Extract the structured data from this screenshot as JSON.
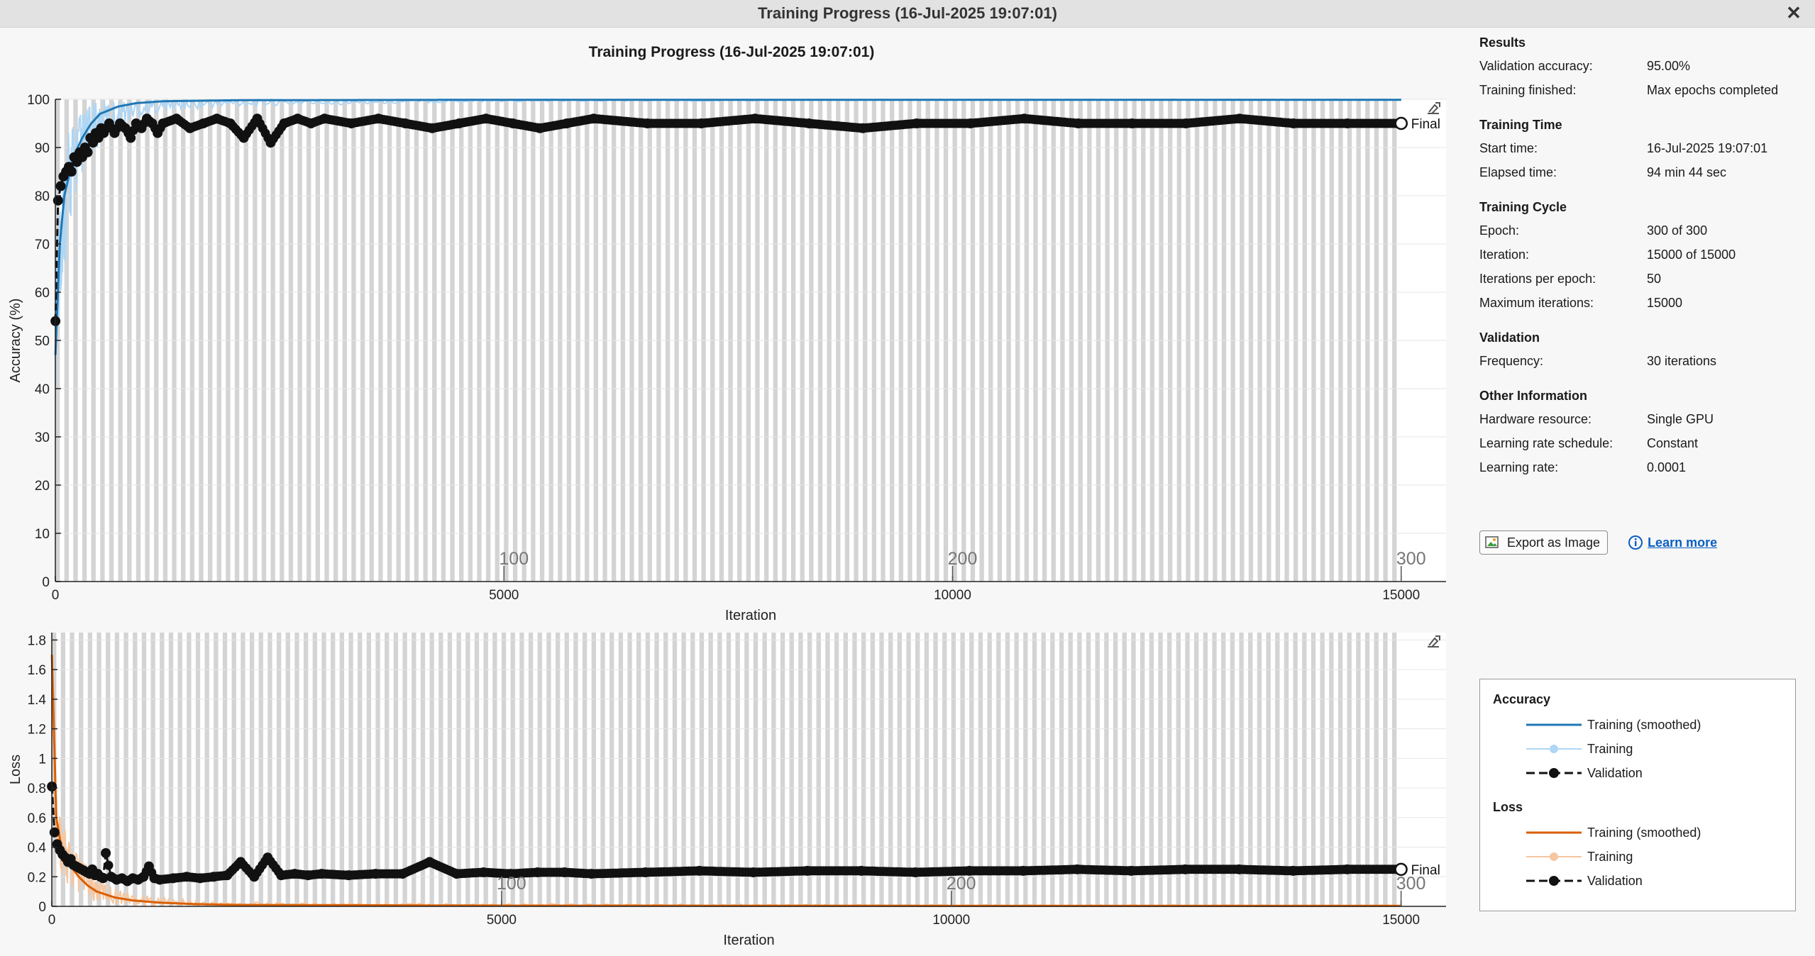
{
  "window": {
    "title": "Training Progress (16-Jul-2025 19:07:01)"
  },
  "colors": {
    "acc_smoothed": "#1f77b4",
    "acc_training": "#aed6f5",
    "loss_smoothed": "#d95f02",
    "loss_training": "#f6c6a0",
    "validation": "#111111",
    "epoch_stripe": "#d4d4d4"
  },
  "icons": {
    "close": "close-icon",
    "export": "export-image-icon",
    "info": "info-icon",
    "axes_toolbar": "axes-toolbar-icon"
  },
  "info_panel": {
    "sections": [
      {
        "title": "Results",
        "rows": [
          {
            "label": "Validation accuracy:",
            "value": "95.00%"
          },
          {
            "label": "Training finished:",
            "value": "Max epochs completed"
          }
        ]
      },
      {
        "title": "Training Time",
        "rows": [
          {
            "label": "Start time:",
            "value": "16-Jul-2025 19:07:01"
          },
          {
            "label": "Elapsed time:",
            "value": "94 min 44 sec"
          }
        ]
      },
      {
        "title": "Training Cycle",
        "rows": [
          {
            "label": "Epoch:",
            "value": "300 of 300"
          },
          {
            "label": "Iteration:",
            "value": "15000 of 15000"
          },
          {
            "label": "Iterations per epoch:",
            "value": "50"
          },
          {
            "label": "Maximum iterations:",
            "value": "15000"
          }
        ]
      },
      {
        "title": "Validation",
        "rows": [
          {
            "label": "Frequency:",
            "value": "30 iterations"
          }
        ]
      },
      {
        "title": "Other Information",
        "rows": [
          {
            "label": "Hardware resource:",
            "value": "Single GPU"
          },
          {
            "label": "Learning rate schedule:",
            "value": "Constant"
          },
          {
            "label": "Learning rate:",
            "value": "0.0001"
          }
        ]
      }
    ],
    "export_label": "Export as Image",
    "learn_more_label": "Learn more"
  },
  "legend": {
    "groups": [
      {
        "title": "Accuracy",
        "items": [
          {
            "label": "Training (smoothed)",
            "style": "smoothed"
          },
          {
            "label": "Training",
            "style": "raw"
          },
          {
            "label": "Validation",
            "style": "validation"
          }
        ]
      },
      {
        "title": "Loss",
        "items": [
          {
            "label": "Training (smoothed)",
            "style": "smoothed"
          },
          {
            "label": "Training",
            "style": "raw"
          },
          {
            "label": "Validation",
            "style": "validation"
          }
        ]
      }
    ]
  },
  "chart_data": [
    {
      "type": "line",
      "name": "accuracy",
      "title": "Training Progress (16-Jul-2025 19:07:01)",
      "xlabel": "Iteration",
      "ylabel": "Accuracy (%)",
      "xlim": [
        0,
        15500
      ],
      "ylim": [
        0,
        100
      ],
      "xticks": [
        0,
        5000,
        10000,
        15000
      ],
      "yticks": [
        0,
        10,
        20,
        30,
        40,
        50,
        60,
        70,
        80,
        90,
        100
      ],
      "epoch_ticks": [
        {
          "x": 5000,
          "label": "100"
        },
        {
          "x": 10000,
          "label": "200"
        },
        {
          "x": 15000,
          "label": "300"
        }
      ],
      "final_label": "Final",
      "final_value": 95.0,
      "series": [
        {
          "name": "Training (smoothed)",
          "x": [
            1,
            50,
            100,
            150,
            200,
            300,
            400,
            500,
            700,
            900,
            1200,
            2000,
            5000,
            10000,
            15000
          ],
          "y": [
            47,
            70,
            80,
            84,
            88,
            92,
            95,
            97,
            98.5,
            99.2,
            99.6,
            99.8,
            99.9,
            99.9,
            99.9
          ]
        },
        {
          "name": "Training",
          "x": [
            1,
            50,
            100,
            150,
            200,
            300,
            400,
            500,
            700,
            900,
            1200,
            2000,
            5000,
            10000,
            15000
          ],
          "y_low": [
            40,
            55,
            65,
            72,
            78,
            84,
            88,
            91,
            94,
            96,
            97.5,
            98.5,
            99.5,
            99.8,
            99.9
          ],
          "y_high": [
            56,
            82,
            90,
            94,
            96,
            98,
            99,
            100,
            100,
            100,
            100,
            100,
            100,
            100,
            100
          ]
        },
        {
          "name": "Validation",
          "x": [
            1,
            30,
            60,
            90,
            120,
            150,
            180,
            210,
            240,
            270,
            300,
            330,
            360,
            390,
            420,
            450,
            480,
            510,
            540,
            570,
            600,
            660,
            720,
            780,
            840,
            900,
            960,
            1020,
            1080,
            1140,
            1200,
            1350,
            1500,
            1650,
            1800,
            1950,
            2100,
            2250,
            2400,
            2550,
            2700,
            2850,
            3000,
            3300,
            3600,
            3900,
            4200,
            4500,
            4800,
            5100,
            5400,
            5700,
            6000,
            6600,
            7200,
            7800,
            8400,
            9000,
            9600,
            10200,
            10800,
            11400,
            12000,
            12600,
            13200,
            13800,
            14400,
            15000
          ],
          "y": [
            54,
            79,
            82,
            84,
            85,
            86,
            85,
            88,
            87,
            89,
            88,
            90,
            89,
            92,
            91,
            93,
            92,
            94,
            93,
            94,
            95,
            93,
            95,
            94,
            92,
            95,
            94,
            96,
            95,
            93,
            95,
            96,
            94,
            95,
            96,
            95,
            92,
            96,
            91,
            95,
            96,
            95,
            96,
            95,
            96,
            95,
            94,
            95,
            96,
            95,
            94,
            95,
            96,
            95,
            95,
            96,
            95,
            94,
            95,
            95,
            96,
            95,
            95,
            95,
            96,
            95,
            95,
            95
          ]
        }
      ]
    },
    {
      "type": "line",
      "name": "loss",
      "xlabel": "Iteration",
      "ylabel": "Loss",
      "xlim": [
        0,
        15500
      ],
      "ylim": [
        0,
        1.85
      ],
      "xticks": [
        0,
        5000,
        10000,
        15000
      ],
      "yticks": [
        0,
        0.2,
        0.4,
        0.6,
        0.8,
        1,
        1.2,
        1.4,
        1.6,
        1.8
      ],
      "epoch_ticks": [
        {
          "x": 5000,
          "label": "100"
        },
        {
          "x": 10000,
          "label": "200"
        },
        {
          "x": 15000,
          "label": "300"
        }
      ],
      "final_label": "Final",
      "final_value": 0.25,
      "series": [
        {
          "name": "Training (smoothed)",
          "x": [
            1,
            50,
            100,
            150,
            200,
            300,
            400,
            500,
            700,
            900,
            1200,
            1600,
            2000,
            5000,
            10000,
            15000
          ],
          "y": [
            1.7,
            0.6,
            0.42,
            0.34,
            0.28,
            0.2,
            0.14,
            0.1,
            0.06,
            0.04,
            0.025,
            0.015,
            0.01,
            0.005,
            0.004,
            0.004
          ]
        },
        {
          "name": "Training",
          "x": [
            1,
            50,
            100,
            150,
            200,
            300,
            400,
            500,
            700,
            900,
            1200,
            1600,
            2000,
            5000,
            10000,
            15000
          ],
          "y_low": [
            1.2,
            0.35,
            0.22,
            0.16,
            0.12,
            0.08,
            0.05,
            0.03,
            0.015,
            0.008,
            0.004,
            0.002,
            0.001,
            0.0005,
            0.0005,
            0.0005
          ],
          "y_high": [
            1.85,
            0.85,
            0.65,
            0.52,
            0.45,
            0.35,
            0.27,
            0.2,
            0.13,
            0.09,
            0.06,
            0.04,
            0.03,
            0.02,
            0.01,
            0.008
          ]
        },
        {
          "name": "Validation",
          "x": [
            1,
            30,
            60,
            90,
            120,
            150,
            180,
            210,
            240,
            270,
            300,
            330,
            360,
            390,
            420,
            450,
            480,
            510,
            540,
            570,
            600,
            660,
            720,
            780,
            840,
            900,
            960,
            1020,
            1080,
            1140,
            1200,
            1350,
            1500,
            1650,
            1800,
            1950,
            2100,
            2250,
            2400,
            2550,
            2700,
            2850,
            3000,
            3300,
            3600,
            3900,
            4200,
            4500,
            4800,
            5100,
            5400,
            5700,
            6000,
            6600,
            7200,
            7800,
            8400,
            9000,
            9600,
            10200,
            10800,
            11400,
            12000,
            12600,
            13200,
            13800,
            14400,
            15000
          ],
          "y": [
            0.81,
            0.5,
            0.42,
            0.38,
            0.35,
            0.33,
            0.3,
            0.32,
            0.28,
            0.27,
            0.26,
            0.25,
            0.24,
            0.23,
            0.22,
            0.25,
            0.21,
            0.22,
            0.2,
            0.19,
            0.36,
            0.2,
            0.18,
            0.19,
            0.17,
            0.19,
            0.18,
            0.2,
            0.27,
            0.19,
            0.18,
            0.19,
            0.2,
            0.19,
            0.2,
            0.21,
            0.3,
            0.2,
            0.33,
            0.21,
            0.22,
            0.21,
            0.22,
            0.21,
            0.22,
            0.22,
            0.3,
            0.22,
            0.23,
            0.22,
            0.23,
            0.23,
            0.22,
            0.23,
            0.24,
            0.23,
            0.24,
            0.24,
            0.23,
            0.24,
            0.24,
            0.25,
            0.24,
            0.25,
            0.25,
            0.24,
            0.25,
            0.25
          ]
        }
      ]
    }
  ]
}
